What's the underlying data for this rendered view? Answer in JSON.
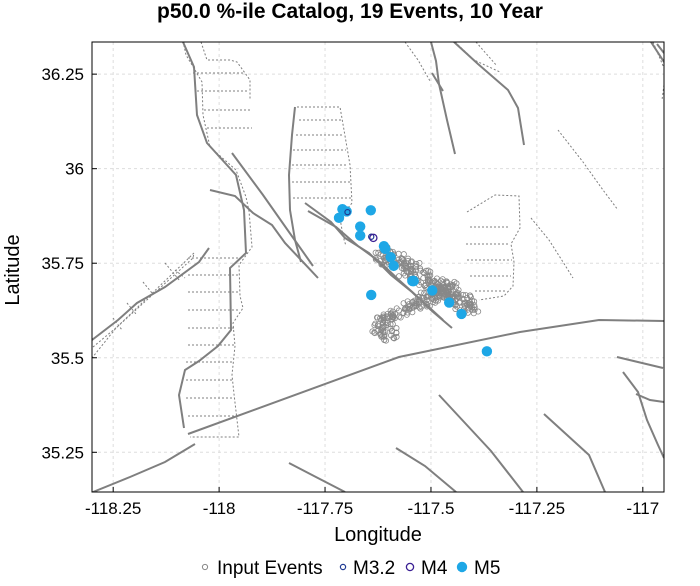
{
  "chart_data": {
    "type": "scatter",
    "title": "p50.0 %-ile Catalog, 19 Events, 10 Year",
    "xlabel": "Longitude",
    "ylabel": "Latitude",
    "xlim": [
      -118.3,
      -116.95
    ],
    "ylim": [
      35.145,
      36.335
    ],
    "xticks": [
      -118.25,
      -118,
      -117.75,
      -117.5,
      -117.25,
      -117
    ],
    "xtick_labels": [
      "-118.25",
      "-118",
      "-117.75",
      "-117.5",
      "-117.25",
      "-117"
    ],
    "yticks": [
      35.25,
      35.5,
      35.75,
      36,
      36.25
    ],
    "ytick_labels": [
      "35.25",
      "35.5",
      "35.75",
      "36",
      "36.25"
    ],
    "grid": true,
    "legend_position": "bottom",
    "legend": [
      "Input Events",
      "M3.2",
      "M4",
      "M5"
    ],
    "colors": {
      "m5": "#1ea7e6",
      "m32_edge": "#1f3a93",
      "m4_edge": "#3a1f93",
      "input_edge": "#888888",
      "fault": "#7f7f7f",
      "grid": "#dddddd"
    },
    "series": [
      {
        "name": "M5",
        "x": [
          -117.717,
          -117.709,
          -117.699,
          -117.642,
          -117.667,
          -117.667,
          -117.611,
          -117.608,
          -117.608,
          -117.595,
          -117.588,
          -117.544,
          -117.541,
          -117.541,
          -117.497,
          -117.457,
          -117.428,
          -117.641,
          -117.368
        ],
        "y": [
          35.87,
          35.893,
          35.887,
          35.89,
          35.847,
          35.823,
          35.795,
          35.788,
          35.788,
          35.766,
          35.743,
          35.703,
          35.703,
          35.703,
          35.678,
          35.646,
          35.616,
          35.666,
          35.517
        ]
      },
      {
        "name": "M3.2",
        "x": [
          -117.697,
          -117.641
        ],
        "y": [
          35.885,
          35.82
        ]
      },
      {
        "name": "M4",
        "x": [
          -117.636
        ],
        "y": [
          35.817
        ]
      }
    ]
  }
}
